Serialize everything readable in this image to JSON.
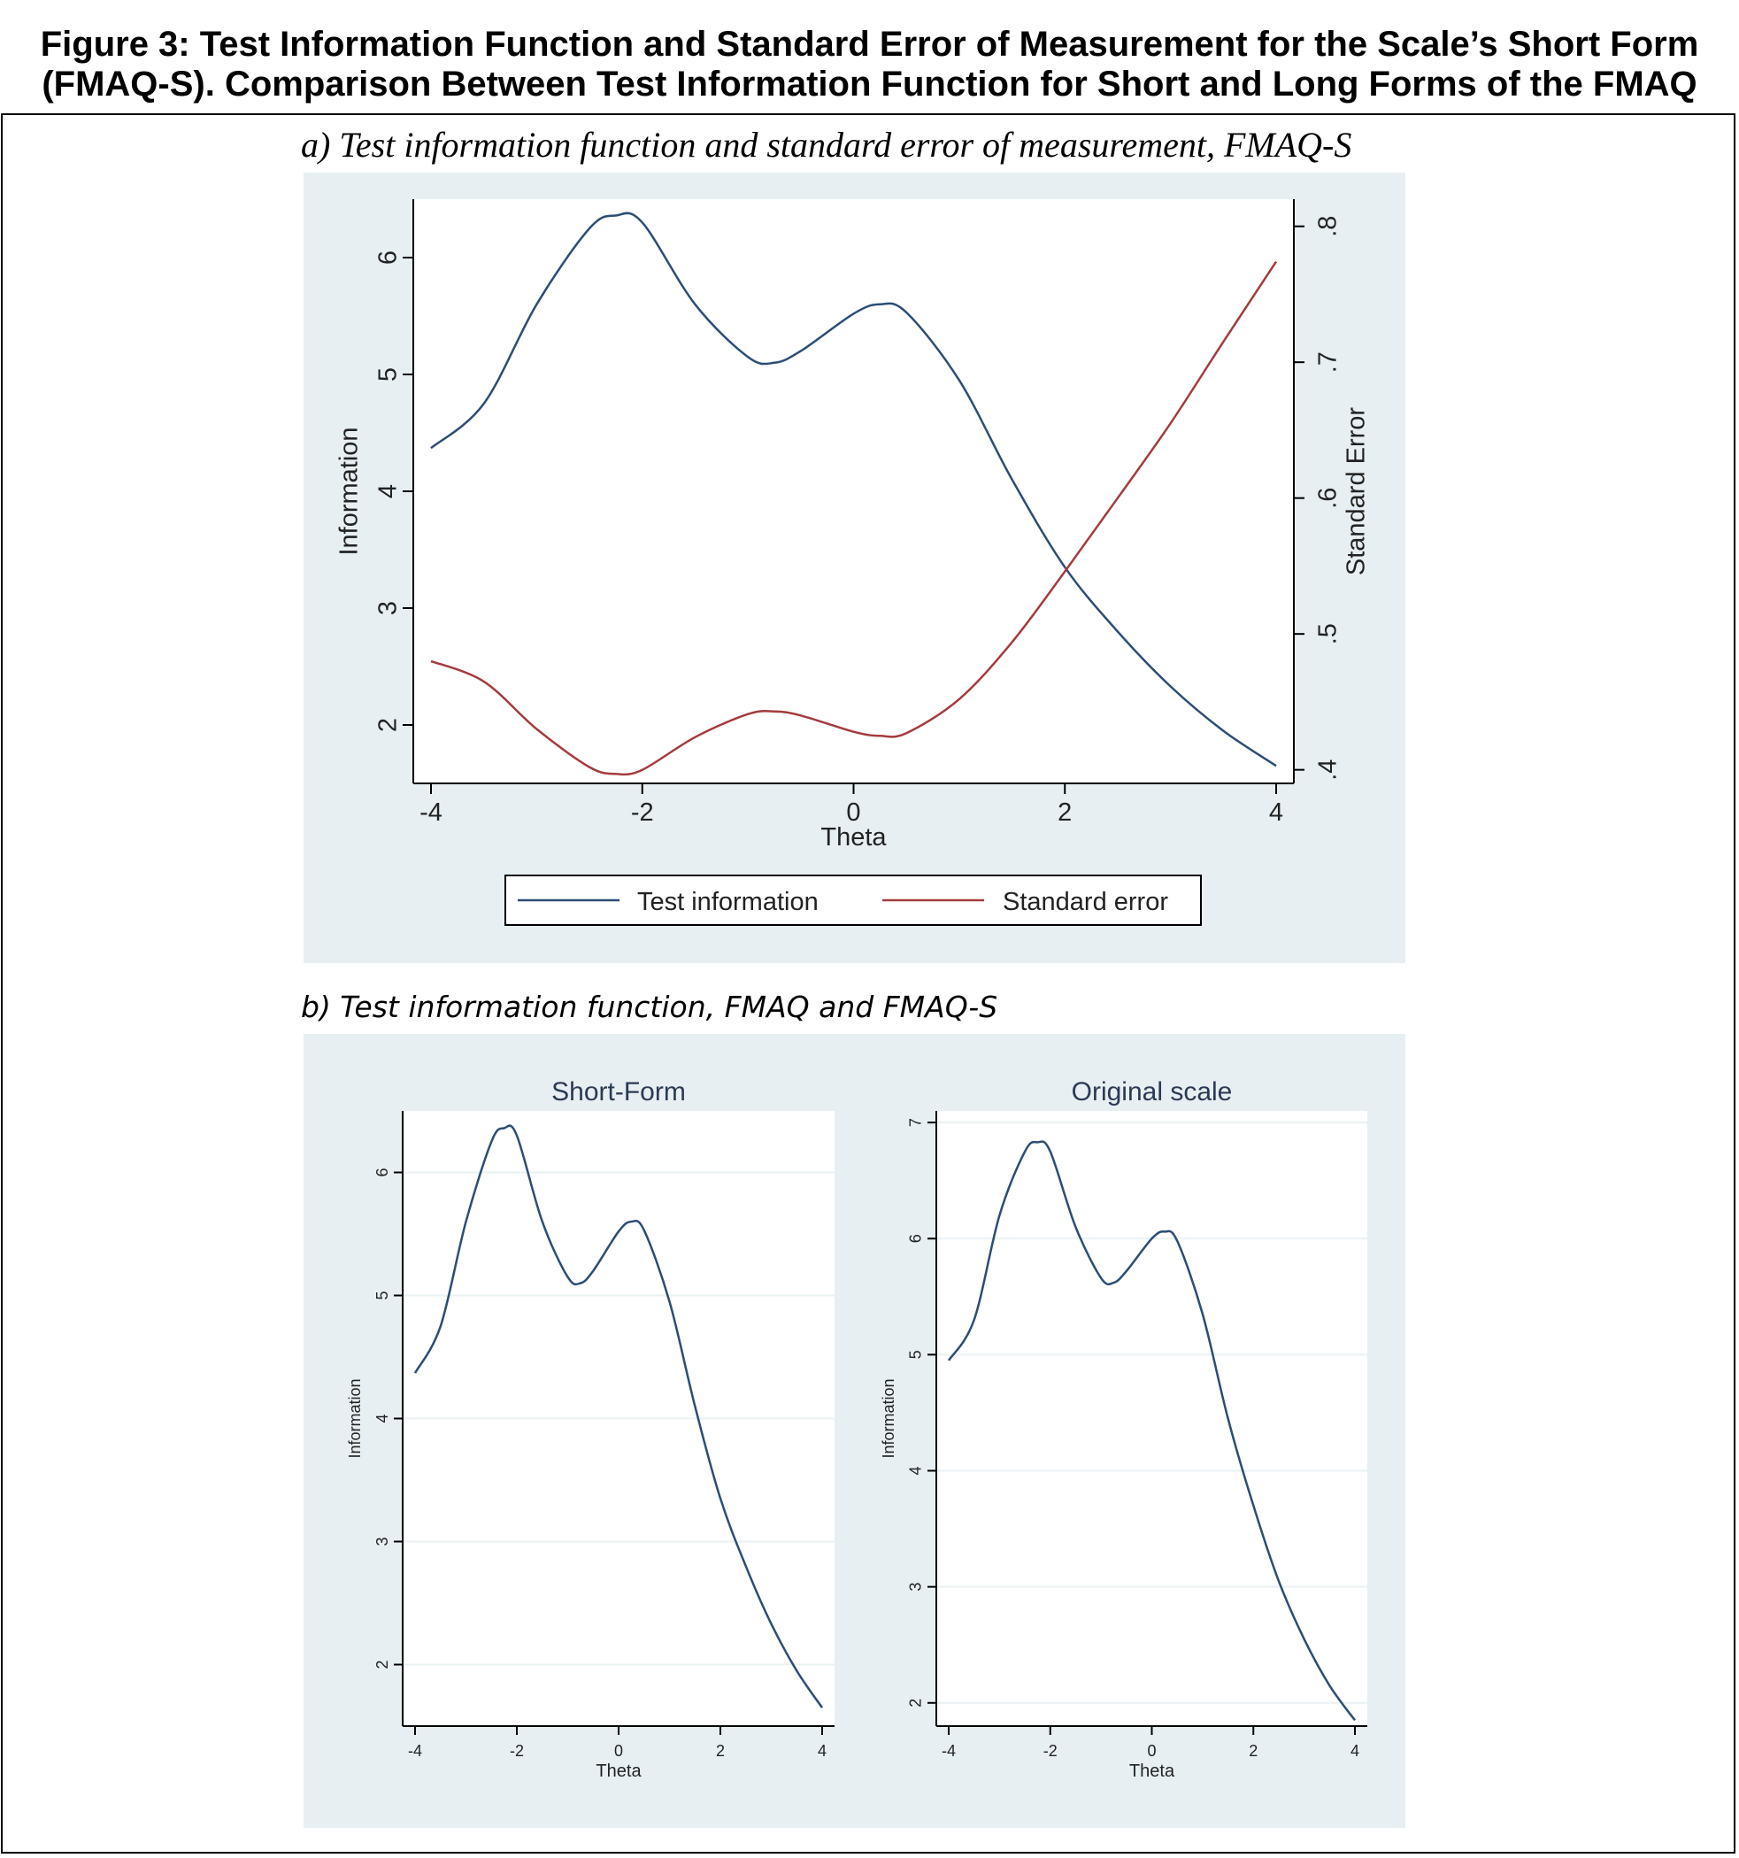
{
  "figure": {
    "title_line1": "Figure 3: Test Information Function and Standard Error of Measurement for the Scale’s Short Form",
    "title_line2": "(FMAQ-S). Comparison Between Test Information Function for Short and Long Forms of the FMAQ"
  },
  "panel_a": {
    "caption": "a)   Test information function and standard error of measurement, FMAQ-S"
  },
  "panel_b": {
    "caption": "b)   Test information function, FMAQ and FMAQ-S"
  },
  "colors": {
    "info": "#2c4d75",
    "se": "#a43b3e",
    "plot_region": "#e8eff2",
    "grid": "#eaf2f3"
  },
  "chart_data": [
    {
      "type": "line",
      "xlabel": "Theta",
      "ylabel": "Information",
      "y2label": "Standard Error",
      "xlim": [
        -4,
        4
      ],
      "ylim": [
        1.5,
        6.5
      ],
      "y2lim": [
        0.39,
        0.82
      ],
      "xticks": [
        "-4",
        "-2",
        "0",
        "2",
        "4"
      ],
      "yticks": [
        "2",
        "3",
        "4",
        "5",
        "6"
      ],
      "y2ticks": [
        ".4",
        ".5",
        ".6",
        ".7",
        ".8"
      ],
      "legend": "bottom",
      "grid": false,
      "series": [
        {
          "name": "Test information",
          "axis": "left",
          "x": [
            -4,
            -3.5,
            -3,
            -2.5,
            -2.25,
            -2,
            -1.5,
            -1,
            -0.75,
            -0.5,
            0,
            0.25,
            0.5,
            1,
            1.5,
            2,
            2.5,
            3,
            3.5,
            4
          ],
          "y": [
            4.37,
            4.75,
            5.6,
            6.25,
            6.36,
            6.3,
            5.6,
            5.15,
            5.1,
            5.2,
            5.52,
            5.6,
            5.53,
            4.95,
            4.1,
            3.35,
            2.8,
            2.33,
            1.95,
            1.65
          ]
        },
        {
          "name": "Standard error",
          "axis": "right",
          "x": [
            -4,
            -3.5,
            -3,
            -2.5,
            -2.25,
            -2,
            -1.5,
            -1,
            -0.75,
            -0.5,
            0,
            0.25,
            0.5,
            1,
            1.5,
            2,
            2.5,
            3,
            3.5,
            4
          ],
          "y": [
            0.48,
            0.465,
            0.43,
            0.402,
            0.397,
            0.4,
            0.424,
            0.441,
            0.443,
            0.44,
            0.428,
            0.425,
            0.427,
            0.452,
            0.494,
            0.546,
            0.6,
            0.655,
            0.715,
            0.774
          ]
        }
      ]
    },
    {
      "type": "line",
      "title": "Short-Form",
      "xlabel": "Theta",
      "ylabel": "Information",
      "xlim": [
        -4,
        4
      ],
      "ylim": [
        1.5,
        6.5
      ],
      "xticks": [
        "-4",
        "-2",
        "0",
        "2",
        "4"
      ],
      "yticks": [
        "2",
        "3",
        "4",
        "5",
        "6"
      ],
      "grid": true,
      "series": [
        {
          "x": [
            -4,
            -3.5,
            -3,
            -2.5,
            -2.25,
            -2,
            -1.5,
            -1,
            -0.75,
            -0.5,
            0,
            0.25,
            0.5,
            1,
            1.5,
            2,
            2.5,
            3,
            3.5,
            4
          ],
          "y": [
            4.37,
            4.75,
            5.6,
            6.25,
            6.36,
            6.3,
            5.6,
            5.15,
            5.1,
            5.2,
            5.52,
            5.6,
            5.53,
            4.95,
            4.1,
            3.35,
            2.8,
            2.33,
            1.95,
            1.65
          ]
        }
      ]
    },
    {
      "type": "line",
      "title": "Original scale",
      "xlabel": "Theta",
      "ylabel": "Information",
      "xlim": [
        -4,
        4
      ],
      "ylim": [
        1.8,
        7.1
      ],
      "xticks": [
        "-4",
        "-2",
        "0",
        "2",
        "4"
      ],
      "yticks": [
        "2",
        "3",
        "4",
        "5",
        "6",
        "7"
      ],
      "grid": true,
      "series": [
        {
          "x": [
            -4,
            -3.5,
            -3,
            -2.5,
            -2.25,
            -2,
            -1.5,
            -1,
            -0.75,
            -0.5,
            0,
            0.25,
            0.5,
            1,
            1.5,
            2,
            2.5,
            3,
            3.5,
            4
          ],
          "y": [
            4.95,
            5.3,
            6.2,
            6.75,
            6.83,
            6.75,
            6.1,
            5.66,
            5.62,
            5.72,
            6.0,
            6.06,
            5.98,
            5.35,
            4.45,
            3.7,
            3.05,
            2.55,
            2.15,
            1.85
          ]
        }
      ]
    }
  ]
}
